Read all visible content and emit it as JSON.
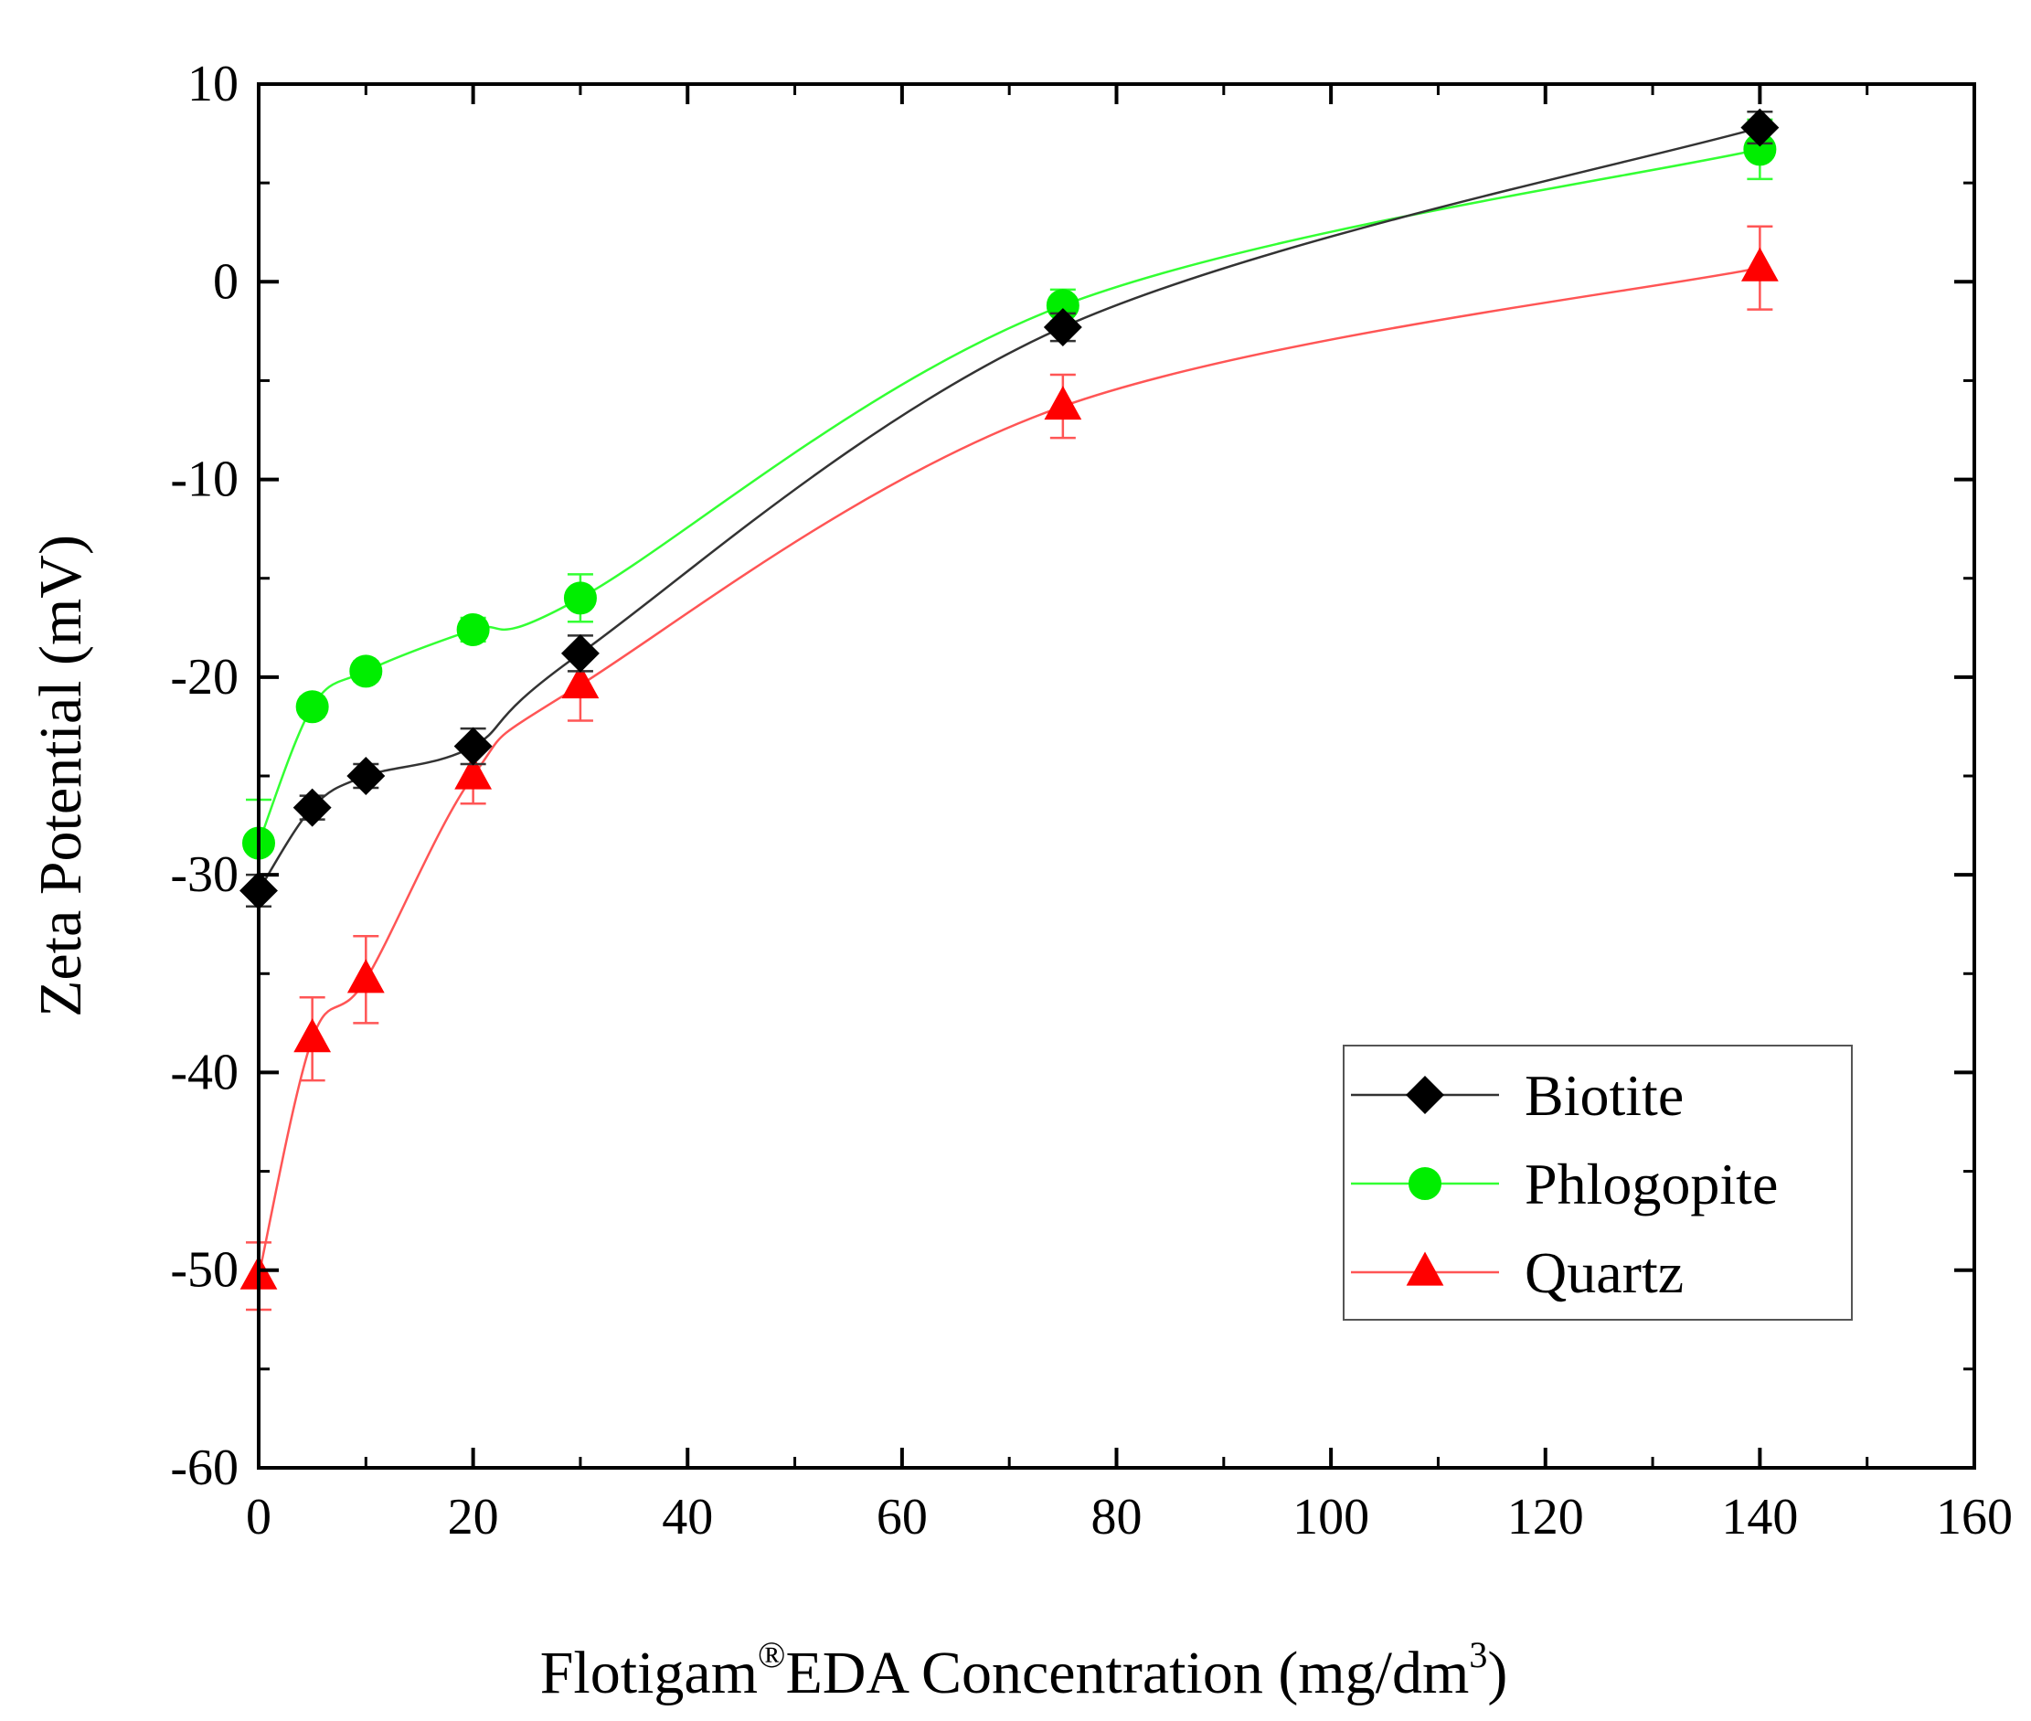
{
  "chart_data": {
    "type": "line",
    "title": "",
    "xlabel": {
      "prefix": "Flotigam",
      "registered": "®",
      "middle": "EDA Concentration (mg/dm",
      "superscript": "3",
      "suffix": ")"
    },
    "ylabel": "Zeta Potential (mV)",
    "xlim": [
      0,
      160
    ],
    "ylim": [
      -60,
      10
    ],
    "xticks": [
      0,
      20,
      40,
      60,
      80,
      100,
      120,
      140,
      160
    ],
    "yticks": [
      10,
      0,
      -10,
      -20,
      -30,
      -40,
      -50,
      -60
    ],
    "legend_position": "bottom-right",
    "series": [
      {
        "name": "Biotite",
        "color": "#000000",
        "line_color": "#333333",
        "marker": "diamond",
        "x": [
          0,
          5,
          10,
          20,
          30,
          75,
          140
        ],
        "y": [
          -30.8,
          -26.6,
          -25.0,
          -23.5,
          -18.8,
          -2.3,
          7.8
        ],
        "err": [
          0.8,
          0.6,
          0.6,
          0.9,
          0.9,
          0.7,
          0.8
        ]
      },
      {
        "name": "Phlogopite",
        "color": "#00ee00",
        "line_color": "#33ff33",
        "marker": "circle",
        "x": [
          0,
          5,
          10,
          20,
          30,
          75,
          140
        ],
        "y": [
          -28.4,
          -21.5,
          -19.7,
          -17.6,
          -16.0,
          -1.2,
          6.7
        ],
        "err": [
          2.2,
          0.5,
          0.5,
          0.6,
          1.2,
          0.8,
          1.5
        ]
      },
      {
        "name": "Quartz",
        "color": "#ff0000",
        "line_color": "#ff5555",
        "marker": "triangle",
        "x": [
          0,
          5,
          10,
          20,
          30,
          75,
          140
        ],
        "y": [
          -50.3,
          -38.3,
          -35.3,
          -25.0,
          -20.4,
          -6.3,
          0.7
        ],
        "err": [
          1.7,
          2.1,
          2.2,
          1.4,
          1.8,
          1.6,
          2.1
        ]
      }
    ]
  }
}
